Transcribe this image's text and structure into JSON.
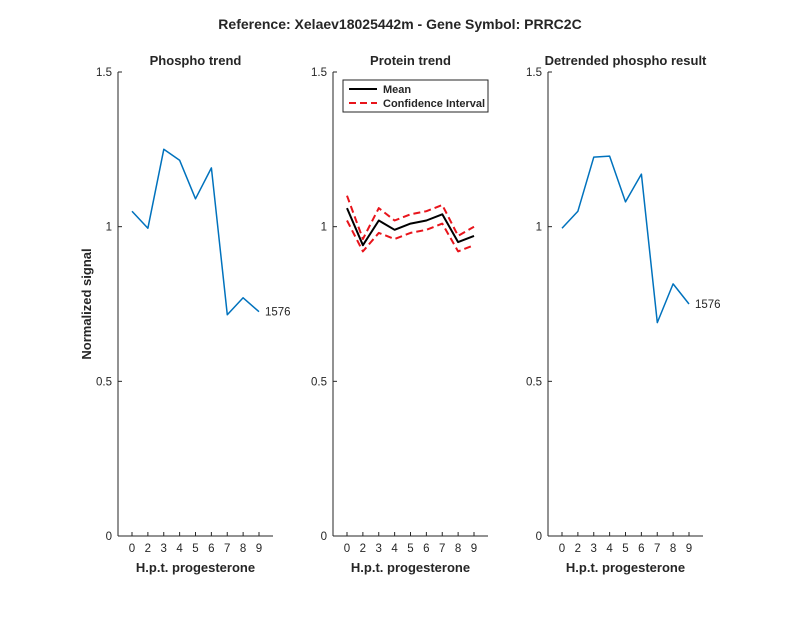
{
  "figure_title": "Reference:  Xelaev18025442m - Gene Symbol:  PRRC2C",
  "y_axis_label": "Normalized signal",
  "chart_data": [
    {
      "type": "line",
      "title": "Phospho trend",
      "xlabel": "H.p.t. progesterone",
      "ylabel": "Normalized signal",
      "x": [
        "0",
        "2",
        "3",
        "4",
        "5",
        "6",
        "7",
        "8",
        "9"
      ],
      "ylim": [
        0,
        1.5
      ],
      "yticks": [
        "0",
        "0.5",
        "1",
        "1.5"
      ],
      "series": [
        {
          "values": [
            1.05,
            0.995,
            1.25,
            1.215,
            1.09,
            1.19,
            0.715,
            0.77,
            0.725
          ],
          "color": "#0072bd",
          "style": "solid"
        }
      ],
      "end_label": "1576"
    },
    {
      "type": "line",
      "title": "Protein trend",
      "xlabel": "H.p.t. progesterone",
      "x": [
        "0",
        "2",
        "3",
        "4",
        "5",
        "6",
        "7",
        "8",
        "9"
      ],
      "ylim": [
        0,
        1.5
      ],
      "yticks": [
        "0",
        "0.5",
        "1",
        "1.5"
      ],
      "legend_position": "top-left",
      "series": [
        {
          "name": "Mean",
          "values": [
            1.06,
            0.94,
            1.02,
            0.99,
            1.01,
            1.02,
            1.04,
            0.95,
            0.97
          ],
          "color": "#000000",
          "style": "solid"
        },
        {
          "name": "Confidence Interval",
          "values": [
            1.1,
            0.96,
            1.06,
            1.02,
            1.04,
            1.05,
            1.07,
            0.97,
            1.0
          ],
          "color": "#e8141b",
          "style": "dashed"
        },
        {
          "values": [
            1.02,
            0.92,
            0.98,
            0.96,
            0.98,
            0.99,
            1.01,
            0.92,
            0.94
          ],
          "color": "#e8141b",
          "style": "dashed"
        }
      ]
    },
    {
      "type": "line",
      "title": "Detrended phospho result",
      "xlabel": "H.p.t. progesterone",
      "x": [
        "0",
        "2",
        "3",
        "4",
        "5",
        "6",
        "7",
        "8",
        "9"
      ],
      "ylim": [
        0,
        1.5
      ],
      "yticks": [
        "0",
        "0.5",
        "1",
        "1.5"
      ],
      "series": [
        {
          "values": [
            0.995,
            1.05,
            1.225,
            1.228,
            1.08,
            1.17,
            0.69,
            0.815,
            0.75
          ],
          "color": "#0072bd",
          "style": "solid"
        }
      ],
      "end_label": "1576"
    }
  ]
}
